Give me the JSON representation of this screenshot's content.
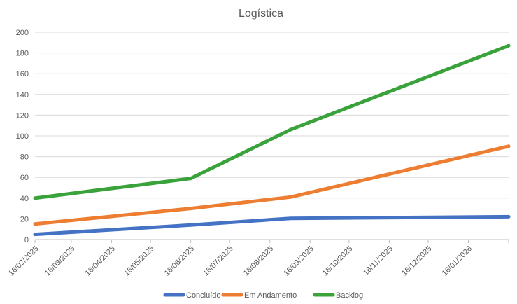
{
  "chart_data": {
    "type": "line",
    "title": "Logística",
    "xlabel": "",
    "ylabel": "",
    "ylim": [
      0,
      200
    ],
    "yticks": [
      0,
      20,
      40,
      60,
      80,
      100,
      120,
      140,
      160,
      180,
      200
    ],
    "grid": true,
    "legend_position": "bottom",
    "x_dates": [
      "2025-02-16",
      "2025-03-16",
      "2025-04-16",
      "2025-05-16",
      "2025-06-16",
      "2025-07-16",
      "2025-08-16",
      "2025-09-16",
      "2025-10-16",
      "2025-11-16",
      "2025-12-16",
      "2026-01-16",
      "2026-02-16"
    ],
    "x_range": [
      "2025-02-16",
      "2026-02-16"
    ],
    "xtick_labels": [
      "16/02/2025",
      "16/03/2025",
      "16/04/2025",
      "16/05/2025",
      "16/06/2025",
      "16/07/2025",
      "16/08/2025",
      "16/09/2025",
      "16/10/2025",
      "16/11/2025",
      "16/12/2025",
      "16/01/2026"
    ],
    "series": [
      {
        "name": "Concluído",
        "color": "#4472c4",
        "x": [
          "2025-02-16",
          "2025-06-16",
          "2025-09-01",
          "2026-02-16"
        ],
        "y": [
          5,
          14,
          20.5,
          22
        ]
      },
      {
        "name": "Em Andamento",
        "color": "#ed7d31",
        "x": [
          "2025-02-16",
          "2025-06-16",
          "2025-09-01",
          "2026-02-16"
        ],
        "y": [
          15,
          30,
          41,
          90
        ]
      },
      {
        "name": "Backlog",
        "color": "#3aa23a",
        "x": [
          "2025-02-16",
          "2025-06-16",
          "2025-09-01",
          "2026-02-16"
        ],
        "y": [
          40,
          59,
          106,
          187
        ]
      }
    ]
  }
}
